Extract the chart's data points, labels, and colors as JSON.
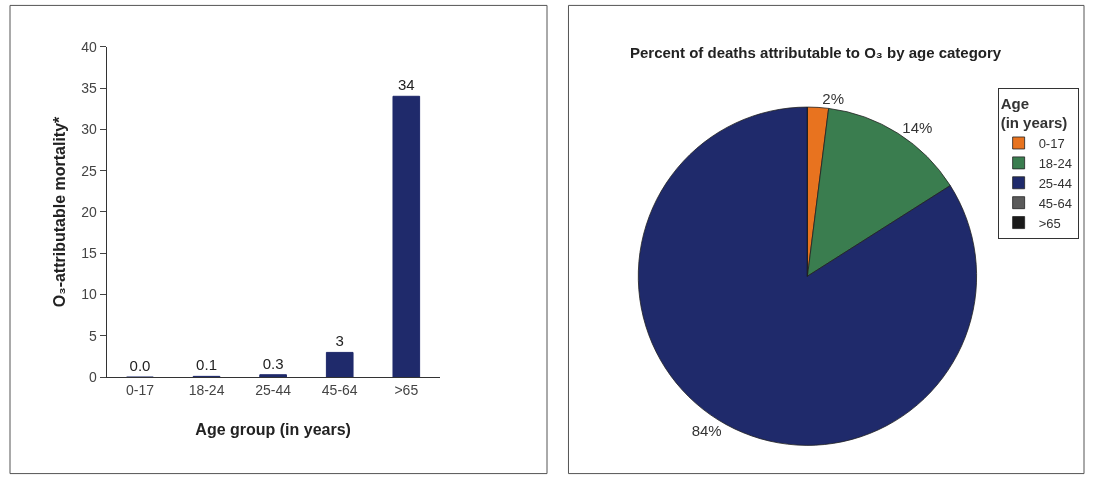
{
  "chart_data": [
    {
      "type": "bar",
      "xlabel": "Age group (in years)",
      "ylabel": "O₃-attributable mortality*",
      "categories": [
        "0-17",
        "18-24",
        "25-44",
        "45-64",
        ">65"
      ],
      "values": [
        0,
        0.1,
        0.3,
        3,
        34
      ],
      "value_labels": [
        "0.0",
        "0.1",
        "0.3",
        "3",
        "34"
      ],
      "color": "#1f2a6b",
      "ylim": [
        0,
        40
      ],
      "yticks": [
        0,
        5,
        10,
        15,
        20,
        25,
        30,
        35,
        40
      ],
      "legend": false
    },
    {
      "type": "pie",
      "title": "Percent of deaths attributable to O₃ by age category",
      "legend_title": "Age\n(in years)",
      "categories": [
        "0-17",
        "18-24",
        "25-44",
        "45-64",
        ">65"
      ],
      "values": [
        2,
        14,
        84,
        0,
        0
      ],
      "value_labels": [
        "2%",
        "14%",
        "84%",
        null,
        null
      ],
      "colors": [
        "#e8731f",
        "#3a7d4f",
        "#1f2a6b",
        "#5a5a5a",
        "#1a1a1a"
      ],
      "legend": "right"
    }
  ]
}
